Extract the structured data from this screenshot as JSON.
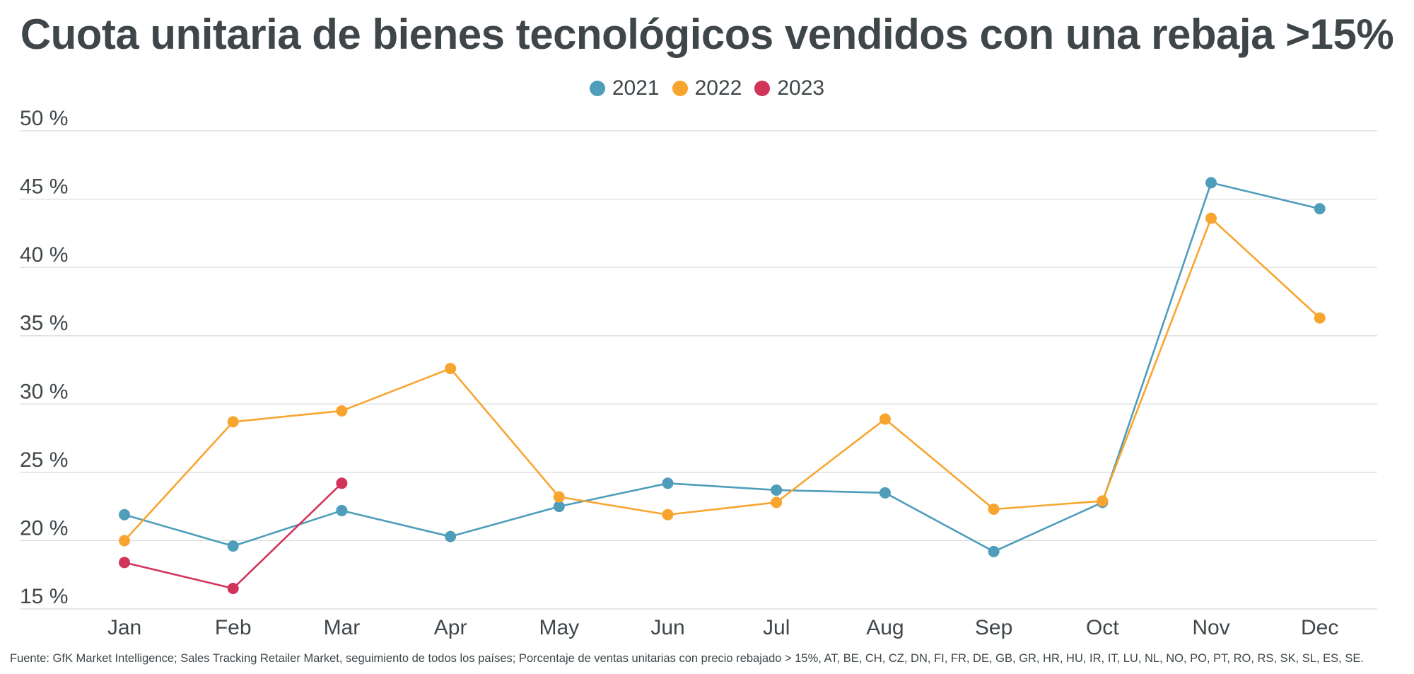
{
  "chart_data": {
    "type": "line",
    "title": "Cuota unitaria de bienes tecnológicos vendidos con una rebaja >15%",
    "categories": [
      "Jan",
      "Feb",
      "Mar",
      "Apr",
      "May",
      "Jun",
      "Jul",
      "Aug",
      "Sep",
      "Oct",
      "Nov",
      "Dec"
    ],
    "series": [
      {
        "name": "2021",
        "color": "#4e9dbb",
        "values": [
          21.9,
          19.6,
          22.2,
          20.3,
          22.5,
          24.2,
          23.7,
          23.5,
          19.2,
          22.8,
          46.2,
          44.3
        ]
      },
      {
        "name": "2022",
        "color": "#f8a530",
        "values": [
          20.0,
          28.7,
          29.5,
          32.6,
          23.2,
          21.9,
          22.8,
          28.9,
          22.3,
          22.9,
          43.6,
          36.3
        ]
      },
      {
        "name": "2023",
        "color": "#d1345b",
        "values": [
          18.4,
          16.5,
          24.2,
          null,
          null,
          null,
          null,
          null,
          null,
          null,
          null,
          null
        ]
      }
    ],
    "ylim": [
      15,
      50
    ],
    "yticks": [
      15,
      20,
      25,
      30,
      35,
      40,
      45,
      50
    ],
    "ytick_suffix": " %",
    "grid": true,
    "legend_position": "top-center"
  },
  "footer": "Fuente: GfK Market Intelligence; Sales Tracking Retailer Market, seguimiento de todos los países; Porcentaje de ventas unitarias con precio rebajado > 15%, AT, BE, CH, CZ, DN, FI, FR, DE, GB, GR, HR, HU, IR, IT, LU, NL, NO, PO, PT, RO, RS, SK, SL, ES, SE."
}
